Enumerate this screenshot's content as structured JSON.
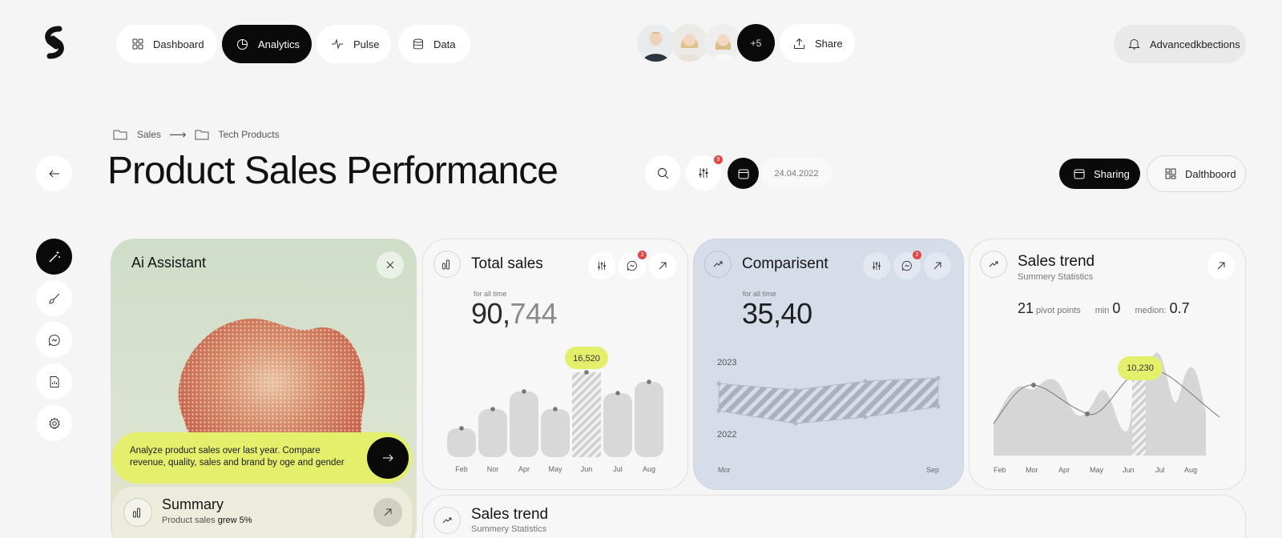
{
  "nav": {
    "items": [
      {
        "label": "Dashboard",
        "icon": "grid-icon"
      },
      {
        "label": "Analytics",
        "icon": "pie-chart-icon",
        "active": true
      },
      {
        "label": "Pulse",
        "icon": "pulse-icon"
      },
      {
        "label": "Data",
        "icon": "database-icon"
      }
    ],
    "avatar_more": "+5",
    "share_label": "Share",
    "notifications_label": "Advancedkbections"
  },
  "breadcrumb": {
    "items": [
      "Sales",
      "Tech Products"
    ],
    "separator": "⟶"
  },
  "page_title": "Product Sales Performance",
  "toolbar": {
    "filter_badge": "9",
    "date": "24.04.2022",
    "sharing_label": "Sharing",
    "dashboard_label": "Dalthboord"
  },
  "ai_assistant": {
    "title": "Ai Assistant",
    "prompt": "Analyze product sales over last year. Compare revenue, quality, sales and brand by oge and gender"
  },
  "summary": {
    "title": "Summary",
    "text_prefix": "Product sales ",
    "text_highlight": "grew 5%"
  },
  "total_sales": {
    "title": "Total sales",
    "caption": "for all time",
    "value_main": "90,",
    "value_tail": "744",
    "comments_badge": "3",
    "tooltip": "16,520"
  },
  "comparison": {
    "title": "Comparisent",
    "caption": "for all time",
    "value": "35,40",
    "comments_badge": "2",
    "label_top": "2023",
    "label_bottom": "2022",
    "x_start": "Mor",
    "x_end": "Sep"
  },
  "sales_trend": {
    "title": "Sales trend",
    "subtitle": "Summery Statistics",
    "pivot_value": "21",
    "pivot_label": "pivot points",
    "min_label": "min",
    "min_value": "0",
    "median_label": "medion:",
    "median_value": "0.7",
    "tooltip": "10,230"
  },
  "sales_trend_bottom": {
    "title": "Sales trend",
    "subtitle": "Summery Statistics"
  },
  "chart_data": [
    {
      "type": "bar",
      "categories": [
        "Feb",
        "Nor",
        "Apr",
        "May",
        "Jun",
        "Jul",
        "Aug"
      ],
      "values": [
        36,
        60,
        82,
        60,
        106,
        80,
        94
      ],
      "highlight": {
        "category": "Jun",
        "label": "16,520"
      }
    },
    {
      "type": "area",
      "x": [
        "Mor",
        "Sep"
      ],
      "series": [
        {
          "name": "2023"
        },
        {
          "name": "2022"
        }
      ]
    },
    {
      "type": "area",
      "categories": [
        "Feb",
        "Mor",
        "Apr",
        "May",
        "Jun",
        "Jul",
        "Aug"
      ],
      "highlight": {
        "category": "Jun",
        "label": "10,230"
      }
    }
  ]
}
